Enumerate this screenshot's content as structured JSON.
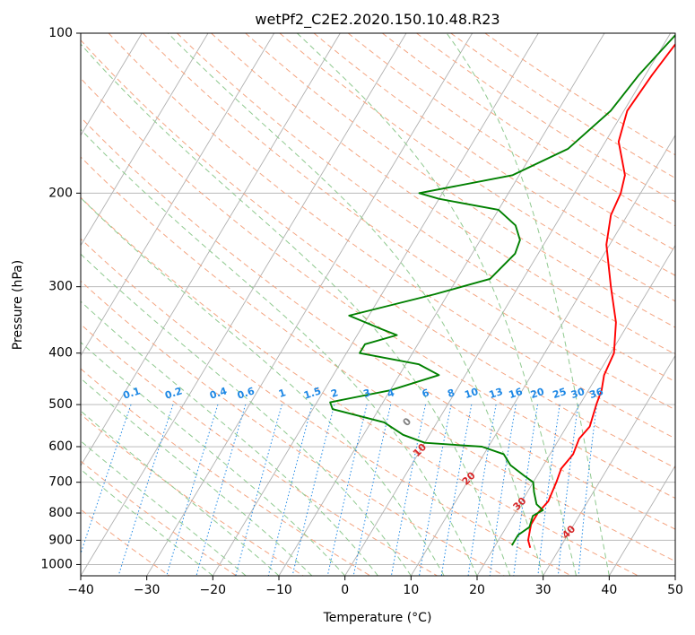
{
  "chart_data": {
    "type": "line",
    "title": "wetPf2_C2E2.2020.150.10.48.R23",
    "xlabel": "Temperature (°C)",
    "ylabel": "Pressure (hPa)",
    "xlim": [
      -40,
      50
    ],
    "ylim_hPa": [
      1050,
      100
    ],
    "y_scale": "log",
    "grid": true,
    "x_ticks": [
      "−40",
      "−30",
      "−20",
      "−10",
      "0",
      "10",
      "20",
      "30",
      "40",
      "50"
    ],
    "y_ticks": [
      "100",
      "200",
      "300",
      "400",
      "500",
      "600",
      "700",
      "800",
      "900",
      "1000"
    ],
    "series": [
      {
        "color": "#ff0000",
        "points": [
          [
            2,
            100
          ],
          [
            1,
            120
          ],
          [
            0.5,
            140
          ],
          [
            2,
            160
          ],
          [
            6,
            185
          ],
          [
            7,
            200
          ],
          [
            7.5,
            220
          ],
          [
            9.5,
            250
          ],
          [
            14,
            300
          ],
          [
            18,
            350
          ],
          [
            20.5,
            400
          ],
          [
            21,
            440
          ],
          [
            22,
            470
          ],
          [
            22.5,
            500
          ],
          [
            23.5,
            550
          ],
          [
            23,
            580
          ],
          [
            23.5,
            620
          ],
          [
            23,
            660
          ],
          [
            23.5,
            700
          ],
          [
            24,
            760
          ],
          [
            23.5,
            800
          ],
          [
            23.5,
            840
          ],
          [
            24,
            870
          ],
          [
            24.5,
            900
          ],
          [
            25.5,
            930
          ]
        ]
      },
      {
        "color": "#008000",
        "points": [
          [
            1,
            100
          ],
          [
            -1,
            120
          ],
          [
            -2,
            140
          ],
          [
            -5,
            165
          ],
          [
            -11,
            185
          ],
          [
            -23.5,
            200
          ],
          [
            -20,
            205
          ],
          [
            -10,
            215
          ],
          [
            -6,
            230
          ],
          [
            -4,
            245
          ],
          [
            -3.5,
            260
          ],
          [
            -5,
            290
          ],
          [
            -12,
            310
          ],
          [
            -23,
            340
          ],
          [
            -17,
            360
          ],
          [
            -14,
            370
          ],
          [
            -18,
            385
          ],
          [
            -18,
            400
          ],
          [
            -8,
            420
          ],
          [
            -4,
            440
          ],
          [
            -10,
            470
          ],
          [
            -18,
            495
          ],
          [
            -17,
            510
          ],
          [
            -8,
            540
          ],
          [
            -4,
            570
          ],
          [
            0,
            590
          ],
          [
            9,
            600
          ],
          [
            13,
            620
          ],
          [
            15,
            650
          ],
          [
            18,
            680
          ],
          [
            20,
            700
          ],
          [
            21,
            730
          ],
          [
            22.5,
            770
          ],
          [
            24,
            790
          ],
          [
            23,
            810
          ],
          [
            23.5,
            850
          ],
          [
            22.5,
            880
          ],
          [
            22.5,
            910
          ],
          [
            22.5,
            920
          ]
        ]
      }
    ],
    "dry_adiabats_C": [
      -100,
      -90,
      -80,
      -70,
      -60,
      -50,
      -40,
      -30,
      -20,
      -10,
      0,
      10,
      20,
      30,
      40
    ],
    "mixing_ratio_lines_gkg": [
      "0.1",
      "0.2",
      "0.4",
      "0.6",
      "1",
      "1.5",
      "2",
      "3",
      "4",
      "6",
      "8",
      "10",
      "13",
      "16",
      "20",
      "25",
      "30",
      "36"
    ],
    "colors": {
      "temperature": "#ff0000",
      "dewpoint": "#008000",
      "isotherm": "#b0b0b0",
      "dry_adiabat": "#f4a582",
      "moist_adiabat": "#8fc98f",
      "mixing_ratio": "#1e88e5",
      "dry_adiabat_label_cold": "#1f6fa8",
      "dry_adiabat_label_warm": "#d62728",
      "zero_label": "#808080"
    }
  }
}
